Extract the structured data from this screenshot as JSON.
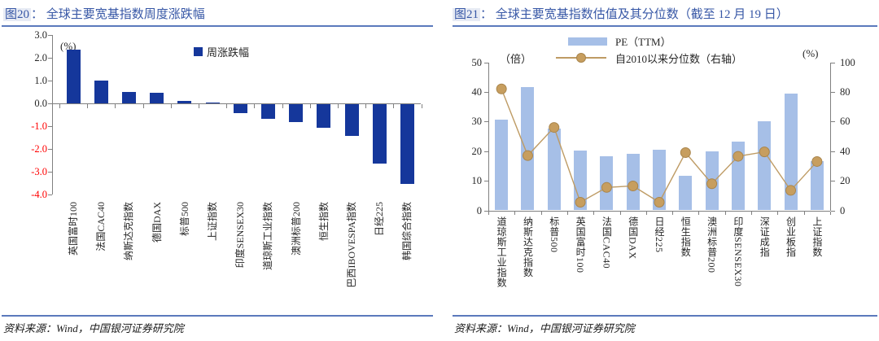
{
  "panels": [
    {
      "title_tag": "图20",
      "title_rest": "：  全球主要宽基指数周度涨跌幅",
      "source": "资料来源：Wind，中国银河证券研究院"
    },
    {
      "title_tag": "图21",
      "title_rest": "：  全球主要宽基指数估值及其分位数（截至 12 月 19 日）",
      "source": "资料来源：Wind，中国银河证券研究院"
    }
  ],
  "chart_data": [
    {
      "type": "bar",
      "title": "全球主要宽基指数周度涨跌幅",
      "unit_label": "(%)",
      "legend": "周涨跌幅",
      "legend_position": "top-right",
      "grid": false,
      "categories": [
        "英国富时100",
        "法国CAC40",
        "纳斯达克指数",
        "德国DAX",
        "标普500",
        "上证指数",
        "印度SENSEX30",
        "道琼斯工业指数",
        "澳洲标普200",
        "恒生指数",
        "巴西IBOVESPA指数",
        "日经225",
        "韩国综合指数"
      ],
      "values": [
        2.35,
        1.0,
        0.5,
        0.45,
        0.12,
        0.02,
        -0.38,
        -0.65,
        -0.8,
        -1.05,
        -1.4,
        -2.6,
        -3.5
      ],
      "ylabel": "周涨跌幅(%)",
      "ylim": [
        -4.0,
        3.0
      ],
      "yticks": [
        3.0,
        2.0,
        1.0,
        0.0,
        -1.0,
        -2.0,
        -3.0,
        -4.0
      ],
      "bar_color": "#15379B",
      "negative_tick_color": "#FF0000"
    },
    {
      "type": "bar+line",
      "title": "全球主要宽基指数估值及其分位数（截至 12 月 19 日）",
      "left_axis_label": "（倍）",
      "right_axis_label": "(%)",
      "legend_position": "top-center",
      "grid": false,
      "categories": [
        "道琼斯工业指数",
        "纳斯达克指数",
        "标普500",
        "英国富时100",
        "法国CAC40",
        "德国DAX",
        "日经225",
        "恒生指数",
        "澳洲标普200",
        "印度SENSEX30",
        "深证成指",
        "创业板指",
        "上证指数"
      ],
      "series": [
        {
          "name": "PE（TTM）",
          "type": "bar",
          "axis": "left",
          "color": "#A6BFE7",
          "values": [
            30.7,
            41.5,
            27.5,
            20.3,
            18.4,
            19.2,
            20.5,
            11.7,
            19.8,
            23.3,
            30.2,
            39.5,
            16.5
          ]
        },
        {
          "name": "自2010以来分位数（右轴）",
          "type": "line",
          "axis": "right",
          "color": "#BE9B64",
          "marker_fill": "#C79E5F",
          "marker_stroke": "#A9854C",
          "values": [
            82,
            37,
            56,
            5.5,
            15.5,
            16.5,
            5.5,
            39,
            18,
            36.5,
            39.5,
            13.5,
            33
          ]
        }
      ],
      "left_ylim": [
        0,
        50
      ],
      "left_yticks": [
        0,
        10,
        20,
        30,
        40,
        50
      ],
      "right_ylim": [
        0,
        100
      ],
      "right_yticks": [
        0,
        20,
        40,
        60,
        80,
        100
      ]
    }
  ]
}
